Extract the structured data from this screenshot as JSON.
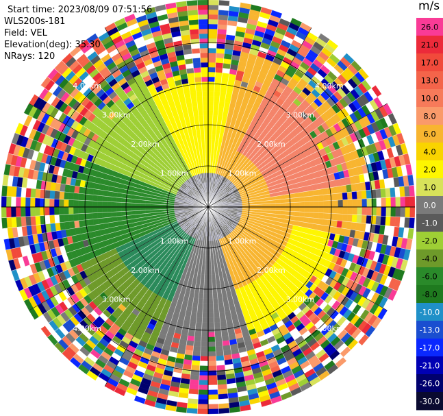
{
  "info": {
    "start_time": "Start time: 2023/08/09 07:51:56",
    "instrument": "WLS200s-181",
    "field": "Field: VEL",
    "elevation": "Elevation(deg): 35.30",
    "nrays": "NRays: 120"
  },
  "colorbar": {
    "unit": "m/s",
    "ticks": [
      "26.0",
      "21.0",
      "17.0",
      "13.0",
      "10.0",
      "8.0",
      "6.0",
      "4.0",
      "2.0",
      "1.0",
      "0.0",
      "-1.0",
      "-2.0",
      "-4.0",
      "-6.0",
      "-8.0",
      "-10.0",
      "-13.0",
      "-17.0",
      "-21.0",
      "-26.0",
      "-30.0"
    ],
    "colors": [
      "#f93b96",
      "#ec2a3a",
      "#f14a3b",
      "#f4644a",
      "#f77a5a",
      "#fa9a6a",
      "#f8b530",
      "#f9d400",
      "#fef600",
      "#d8e25a",
      "#7a7a7a",
      "#5a5a5a",
      "#9ecf35",
      "#6e9a2a",
      "#2a8a2a",
      "#1f7a1f",
      "#2090c8",
      "#1a4ed0",
      "#0a28ff",
      "#0000b4",
      "#00006e",
      "#0a0a30"
    ]
  },
  "chart_data": {
    "type": "ppi",
    "field": "VEL",
    "units": "m/s",
    "n_rays": 120,
    "elevation_deg": 35.3,
    "range_ring_labels": [
      "1.00km",
      "2.00km",
      "3.00km",
      "4.00km"
    ],
    "colorbar_ticks": [
      26.0,
      21.0,
      17.0,
      13.0,
      10.0,
      8.0,
      6.0,
      4.0,
      2.0,
      1.0,
      0.0,
      -1.0,
      -2.0,
      -4.0,
      -6.0,
      -8.0,
      -10.0,
      -13.0,
      -17.0,
      -21.0,
      -26.0,
      -30.0
    ]
  }
}
